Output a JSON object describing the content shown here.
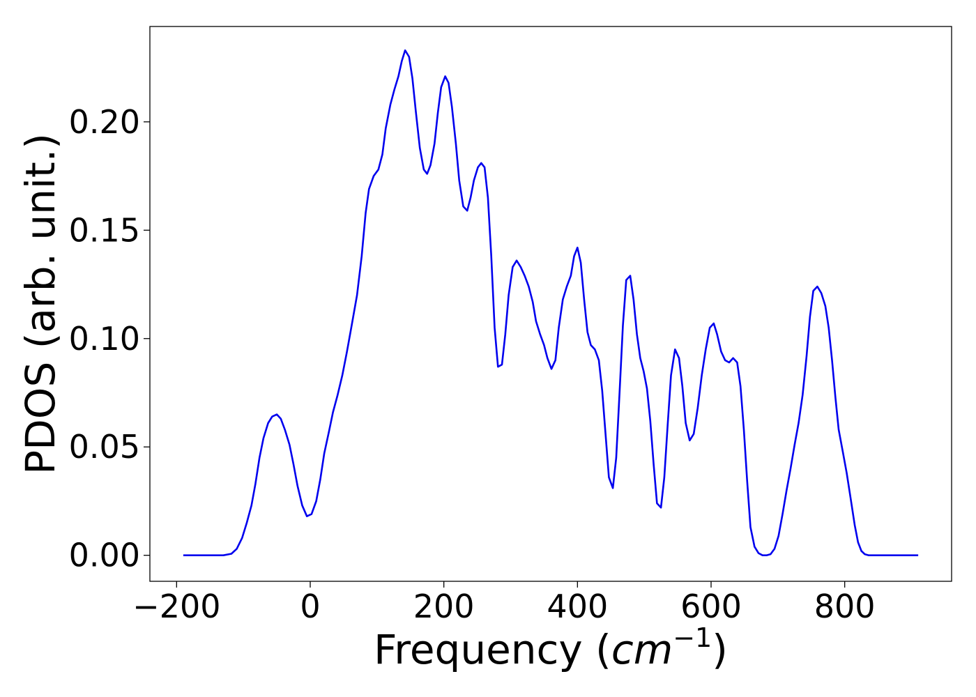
{
  "chart_data": {
    "type": "line",
    "title": "",
    "xlabel": {
      "prefix": "Frequency (",
      "unit_base": "cm",
      "unit_exponent": "−1",
      "suffix": ")"
    },
    "ylabel": "PDOS (arb. unit.)",
    "xlim": [
      -240,
      960
    ],
    "ylim": [
      -0.012,
      0.244
    ],
    "xticks": [
      {
        "value": -200,
        "label": "−200"
      },
      {
        "value": 0,
        "label": "0"
      },
      {
        "value": 200,
        "label": "200"
      },
      {
        "value": 400,
        "label": "400"
      },
      {
        "value": 600,
        "label": "600"
      },
      {
        "value": 800,
        "label": "800"
      }
    ],
    "yticks": [
      {
        "value": 0.0,
        "label": "0.00"
      },
      {
        "value": 0.05,
        "label": "0.05"
      },
      {
        "value": 0.1,
        "label": "0.10"
      },
      {
        "value": 0.15,
        "label": "0.15"
      },
      {
        "value": 0.2,
        "label": "0.20"
      }
    ],
    "grid": false,
    "legend": false,
    "series": [
      {
        "color": "#0000ee",
        "points": [
          [
            -190,
            0.0
          ],
          [
            -130,
            0.0
          ],
          [
            -118,
            0.0007
          ],
          [
            -110,
            0.003
          ],
          [
            -102,
            0.008
          ],
          [
            -95,
            0.015
          ],
          [
            -88,
            0.023
          ],
          [
            -82,
            0.033
          ],
          [
            -76,
            0.045
          ],
          [
            -70,
            0.054
          ],
          [
            -63,
            0.061
          ],
          [
            -57,
            0.064
          ],
          [
            -50,
            0.065
          ],
          [
            -44,
            0.063
          ],
          [
            -38,
            0.058
          ],
          [
            -31,
            0.051
          ],
          [
            -25,
            0.042
          ],
          [
            -19,
            0.032
          ],
          [
            -12,
            0.023
          ],
          [
            -5,
            0.018
          ],
          [
            2,
            0.019
          ],
          [
            9,
            0.025
          ],
          [
            15,
            0.035
          ],
          [
            21,
            0.047
          ],
          [
            28,
            0.057
          ],
          [
            34,
            0.066
          ],
          [
            41,
            0.074
          ],
          [
            48,
            0.083
          ],
          [
            55,
            0.094
          ],
          [
            62,
            0.106
          ],
          [
            70,
            0.12
          ],
          [
            77,
            0.138
          ],
          [
            83,
            0.158
          ],
          [
            88,
            0.169
          ],
          [
            95,
            0.175
          ],
          [
            102,
            0.178
          ],
          [
            108,
            0.185
          ],
          [
            113,
            0.197
          ],
          [
            120,
            0.208
          ],
          [
            126,
            0.215
          ],
          [
            132,
            0.221
          ],
          [
            137,
            0.228
          ],
          [
            142,
            0.233
          ],
          [
            148,
            0.23
          ],
          [
            153,
            0.22
          ],
          [
            158,
            0.205
          ],
          [
            164,
            0.188
          ],
          [
            170,
            0.178
          ],
          [
            175,
            0.176
          ],
          [
            180,
            0.18
          ],
          [
            186,
            0.19
          ],
          [
            191,
            0.204
          ],
          [
            196,
            0.216
          ],
          [
            202,
            0.221
          ],
          [
            207,
            0.218
          ],
          [
            212,
            0.207
          ],
          [
            218,
            0.19
          ],
          [
            223,
            0.173
          ],
          [
            229,
            0.161
          ],
          [
            235,
            0.159
          ],
          [
            240,
            0.165
          ],
          [
            245,
            0.173
          ],
          [
            251,
            0.179
          ],
          [
            256,
            0.181
          ],
          [
            261,
            0.179
          ],
          [
            266,
            0.165
          ],
          [
            271,
            0.138
          ],
          [
            276,
            0.105
          ],
          [
            281,
            0.087
          ],
          [
            287,
            0.088
          ],
          [
            292,
            0.102
          ],
          [
            297,
            0.12
          ],
          [
            303,
            0.133
          ],
          [
            309,
            0.136
          ],
          [
            315,
            0.133
          ],
          [
            321,
            0.129
          ],
          [
            327,
            0.124
          ],
          [
            333,
            0.117
          ],
          [
            338,
            0.108
          ],
          [
            344,
            0.102
          ],
          [
            350,
            0.097
          ],
          [
            355,
            0.091
          ],
          [
            361,
            0.086
          ],
          [
            367,
            0.09
          ],
          [
            372,
            0.105
          ],
          [
            378,
            0.118
          ],
          [
            384,
            0.124
          ],
          [
            390,
            0.129
          ],
          [
            395,
            0.138
          ],
          [
            400,
            0.142
          ],
          [
            405,
            0.135
          ],
          [
            410,
            0.118
          ],
          [
            415,
            0.103
          ],
          [
            420,
            0.097
          ],
          [
            426,
            0.095
          ],
          [
            432,
            0.09
          ],
          [
            437,
            0.076
          ],
          [
            442,
            0.056
          ],
          [
            447,
            0.036
          ],
          [
            453,
            0.031
          ],
          [
            458,
            0.045
          ],
          [
            463,
            0.075
          ],
          [
            468,
            0.106
          ],
          [
            473,
            0.127
          ],
          [
            479,
            0.129
          ],
          [
            484,
            0.118
          ],
          [
            489,
            0.102
          ],
          [
            494,
            0.091
          ],
          [
            499,
            0.085
          ],
          [
            504,
            0.077
          ],
          [
            509,
            0.062
          ],
          [
            514,
            0.042
          ],
          [
            519,
            0.024
          ],
          [
            525,
            0.022
          ],
          [
            530,
            0.036
          ],
          [
            535,
            0.06
          ],
          [
            540,
            0.083
          ],
          [
            546,
            0.095
          ],
          [
            552,
            0.091
          ],
          [
            557,
            0.078
          ],
          [
            562,
            0.061
          ],
          [
            568,
            0.053
          ],
          [
            574,
            0.056
          ],
          [
            580,
            0.068
          ],
          [
            586,
            0.083
          ],
          [
            592,
            0.095
          ],
          [
            598,
            0.105
          ],
          [
            604,
            0.107
          ],
          [
            609,
            0.102
          ],
          [
            615,
            0.094
          ],
          [
            621,
            0.09
          ],
          [
            627,
            0.089
          ],
          [
            633,
            0.091
          ],
          [
            639,
            0.089
          ],
          [
            644,
            0.078
          ],
          [
            649,
            0.058
          ],
          [
            654,
            0.034
          ],
          [
            659,
            0.013
          ],
          [
            665,
            0.004
          ],
          [
            671,
            0.001
          ],
          [
            677,
            0.0
          ],
          [
            683,
            0.0
          ],
          [
            689,
            0.0005
          ],
          [
            695,
            0.003
          ],
          [
            701,
            0.009
          ],
          [
            707,
            0.019
          ],
          [
            713,
            0.03
          ],
          [
            719,
            0.04
          ],
          [
            725,
            0.051
          ],
          [
            731,
            0.061
          ],
          [
            737,
            0.074
          ],
          [
            743,
            0.092
          ],
          [
            748,
            0.11
          ],
          [
            753,
            0.122
          ],
          [
            759,
            0.124
          ],
          [
            765,
            0.121
          ],
          [
            771,
            0.115
          ],
          [
            776,
            0.105
          ],
          [
            781,
            0.09
          ],
          [
            786,
            0.073
          ],
          [
            791,
            0.058
          ],
          [
            797,
            0.048
          ],
          [
            803,
            0.038
          ],
          [
            809,
            0.026
          ],
          [
            815,
            0.014
          ],
          [
            820,
            0.006
          ],
          [
            825,
            0.002
          ],
          [
            830,
            0.0005
          ],
          [
            836,
            0.0
          ],
          [
            910,
            0.0
          ]
        ]
      }
    ]
  }
}
